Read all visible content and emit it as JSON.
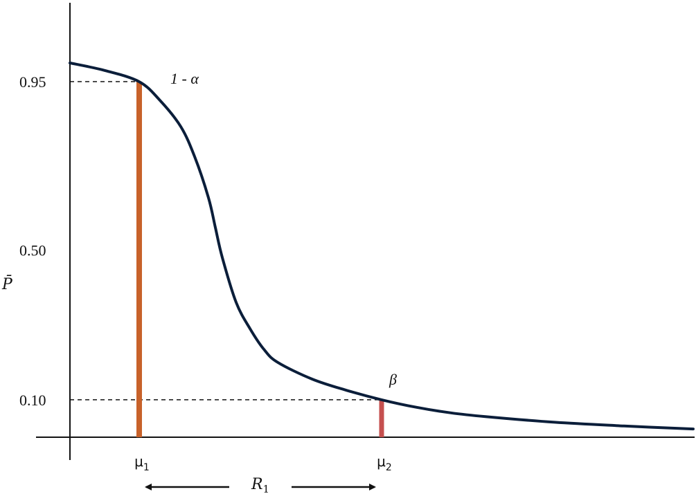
{
  "chart_data": {
    "type": "line",
    "title": "",
    "ylabel": "P̄",
    "xlabel": "",
    "ylim": [
      0,
      1.0
    ],
    "grid": false,
    "yticks": [
      {
        "value": 0.95,
        "label": "0.95"
      },
      {
        "value": 0.5,
        "label": "0.50"
      },
      {
        "value": 0.1,
        "label": "0.10"
      }
    ],
    "xmarkers": [
      {
        "name": "mu1",
        "label": "μ",
        "sub": "1",
        "x": 1.0,
        "y": 0.95,
        "color": "#C8622A"
      },
      {
        "name": "mu2",
        "label": "μ",
        "sub": "2",
        "x": 4.5,
        "y": 0.1,
        "color": "#C5504F"
      }
    ],
    "annotations": [
      {
        "name": "one-minus-alpha",
        "text": "1 - α"
      },
      {
        "name": "beta",
        "text": "β"
      }
    ],
    "range": {
      "label": "R",
      "sub": "1"
    },
    "series": [
      {
        "color": "#0B1E3A",
        "x": [
          0.0,
          0.5,
          1.0,
          1.3,
          1.6,
          1.8,
          2.0,
          2.1,
          2.2,
          2.4,
          2.6,
          2.8,
          3.0,
          3.5,
          4.0,
          4.5,
          5.0,
          5.5,
          6.0,
          7.0,
          8.0,
          9.0
        ],
        "y": [
          1.0,
          0.98,
          0.95,
          0.9,
          0.83,
          0.75,
          0.64,
          0.56,
          0.48,
          0.36,
          0.29,
          0.235,
          0.2,
          0.155,
          0.125,
          0.1,
          0.08,
          0.065,
          0.055,
          0.04,
          0.03,
          0.022
        ]
      }
    ],
    "colors": {
      "curve": "#0B1E3A",
      "axis": "#111111",
      "dashed": "#111111",
      "arrow": "#111111"
    }
  }
}
